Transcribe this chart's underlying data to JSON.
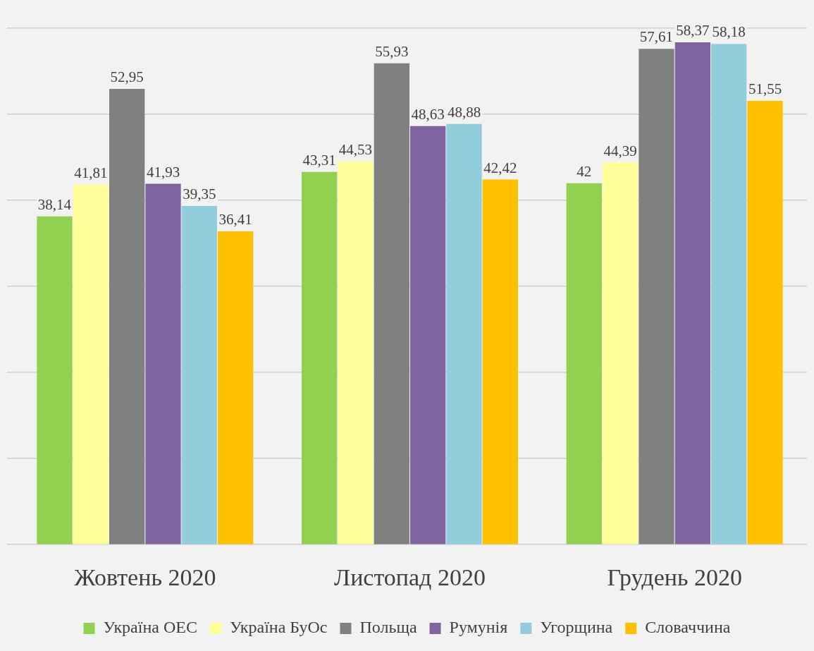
{
  "chart_data": {
    "type": "bar",
    "categories": [
      "Жовтень 2020",
      "Листопад 2020",
      "Грудень 2020"
    ],
    "series": [
      {
        "name": "Україна ОЕС",
        "color": "#92d050",
        "values": [
          38.14,
          43.31,
          42
        ],
        "value_labels": [
          "38,14",
          "43,31",
          "42"
        ]
      },
      {
        "name": "Україна БуОс",
        "color": "#ffff99",
        "values": [
          41.81,
          44.53,
          44.39
        ],
        "value_labels": [
          "41,81",
          "44,53",
          "44,39"
        ]
      },
      {
        "name": "Польща",
        "color": "#808080",
        "values": [
          52.95,
          55.93,
          57.61
        ],
        "value_labels": [
          "52,95",
          "55,93",
          "57,61"
        ]
      },
      {
        "name": "Румунія",
        "color": "#8064a2",
        "values": [
          41.93,
          48.63,
          58.37
        ],
        "value_labels": [
          "41,93",
          "48,63",
          "58,37"
        ]
      },
      {
        "name": "Угорщина",
        "color": "#92cddc",
        "values": [
          39.35,
          48.88,
          58.18
        ],
        "value_labels": [
          "39,35",
          "48,88",
          "58,18"
        ]
      },
      {
        "name": "Словаччина",
        "color": "#ffc000",
        "values": [
          36.41,
          42.42,
          51.55
        ],
        "value_labels": [
          "36,41",
          "42,42",
          "51,55"
        ]
      }
    ],
    "ylim": [
      0,
      60
    ],
    "yticks": [
      {
        "value": 0,
        "label": null
      },
      {
        "value": 10,
        "label": null
      },
      {
        "value": 20,
        "label": null
      },
      {
        "value": 30,
        "label": null
      },
      {
        "value": 40,
        "label": null
      },
      {
        "value": 50,
        "label": null
      },
      {
        "value": 60,
        "label": null
      }
    ],
    "grid": "y",
    "tick_labels": "x",
    "legend": "bottom"
  }
}
